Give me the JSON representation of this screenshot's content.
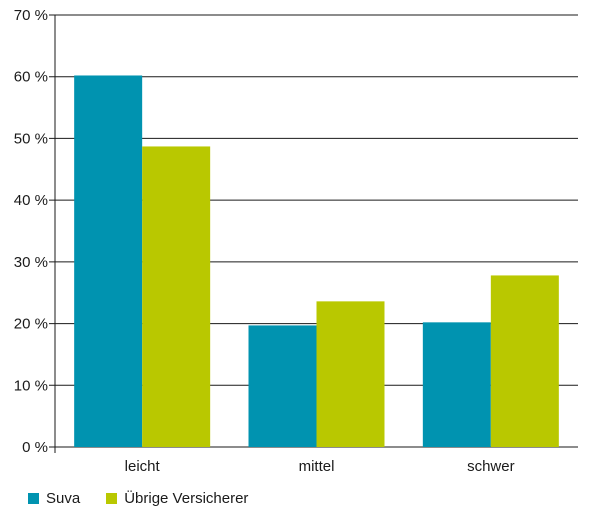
{
  "chart_data": {
    "type": "bar",
    "categories": [
      "leicht",
      "mittel",
      "schwer"
    ],
    "series": [
      {
        "name": "Suva",
        "color": "#0093b0",
        "values": [
          60.2,
          19.7,
          20.2
        ]
      },
      {
        "name": "Übrige Versicherer",
        "color": "#b9c800",
        "values": [
          48.7,
          23.6,
          27.8
        ]
      }
    ],
    "ylim": [
      0,
      70
    ],
    "yticks": [
      0,
      10,
      20,
      30,
      40,
      50,
      60,
      70
    ],
    "ytick_labels": [
      "0 %",
      "10 %",
      "20 %",
      "30 %",
      "40 %",
      "50 %",
      "60 %",
      "70 %"
    ],
    "grid": true,
    "legend_position": "bottom-left",
    "title": "",
    "xlabel": "",
    "ylabel": ""
  }
}
